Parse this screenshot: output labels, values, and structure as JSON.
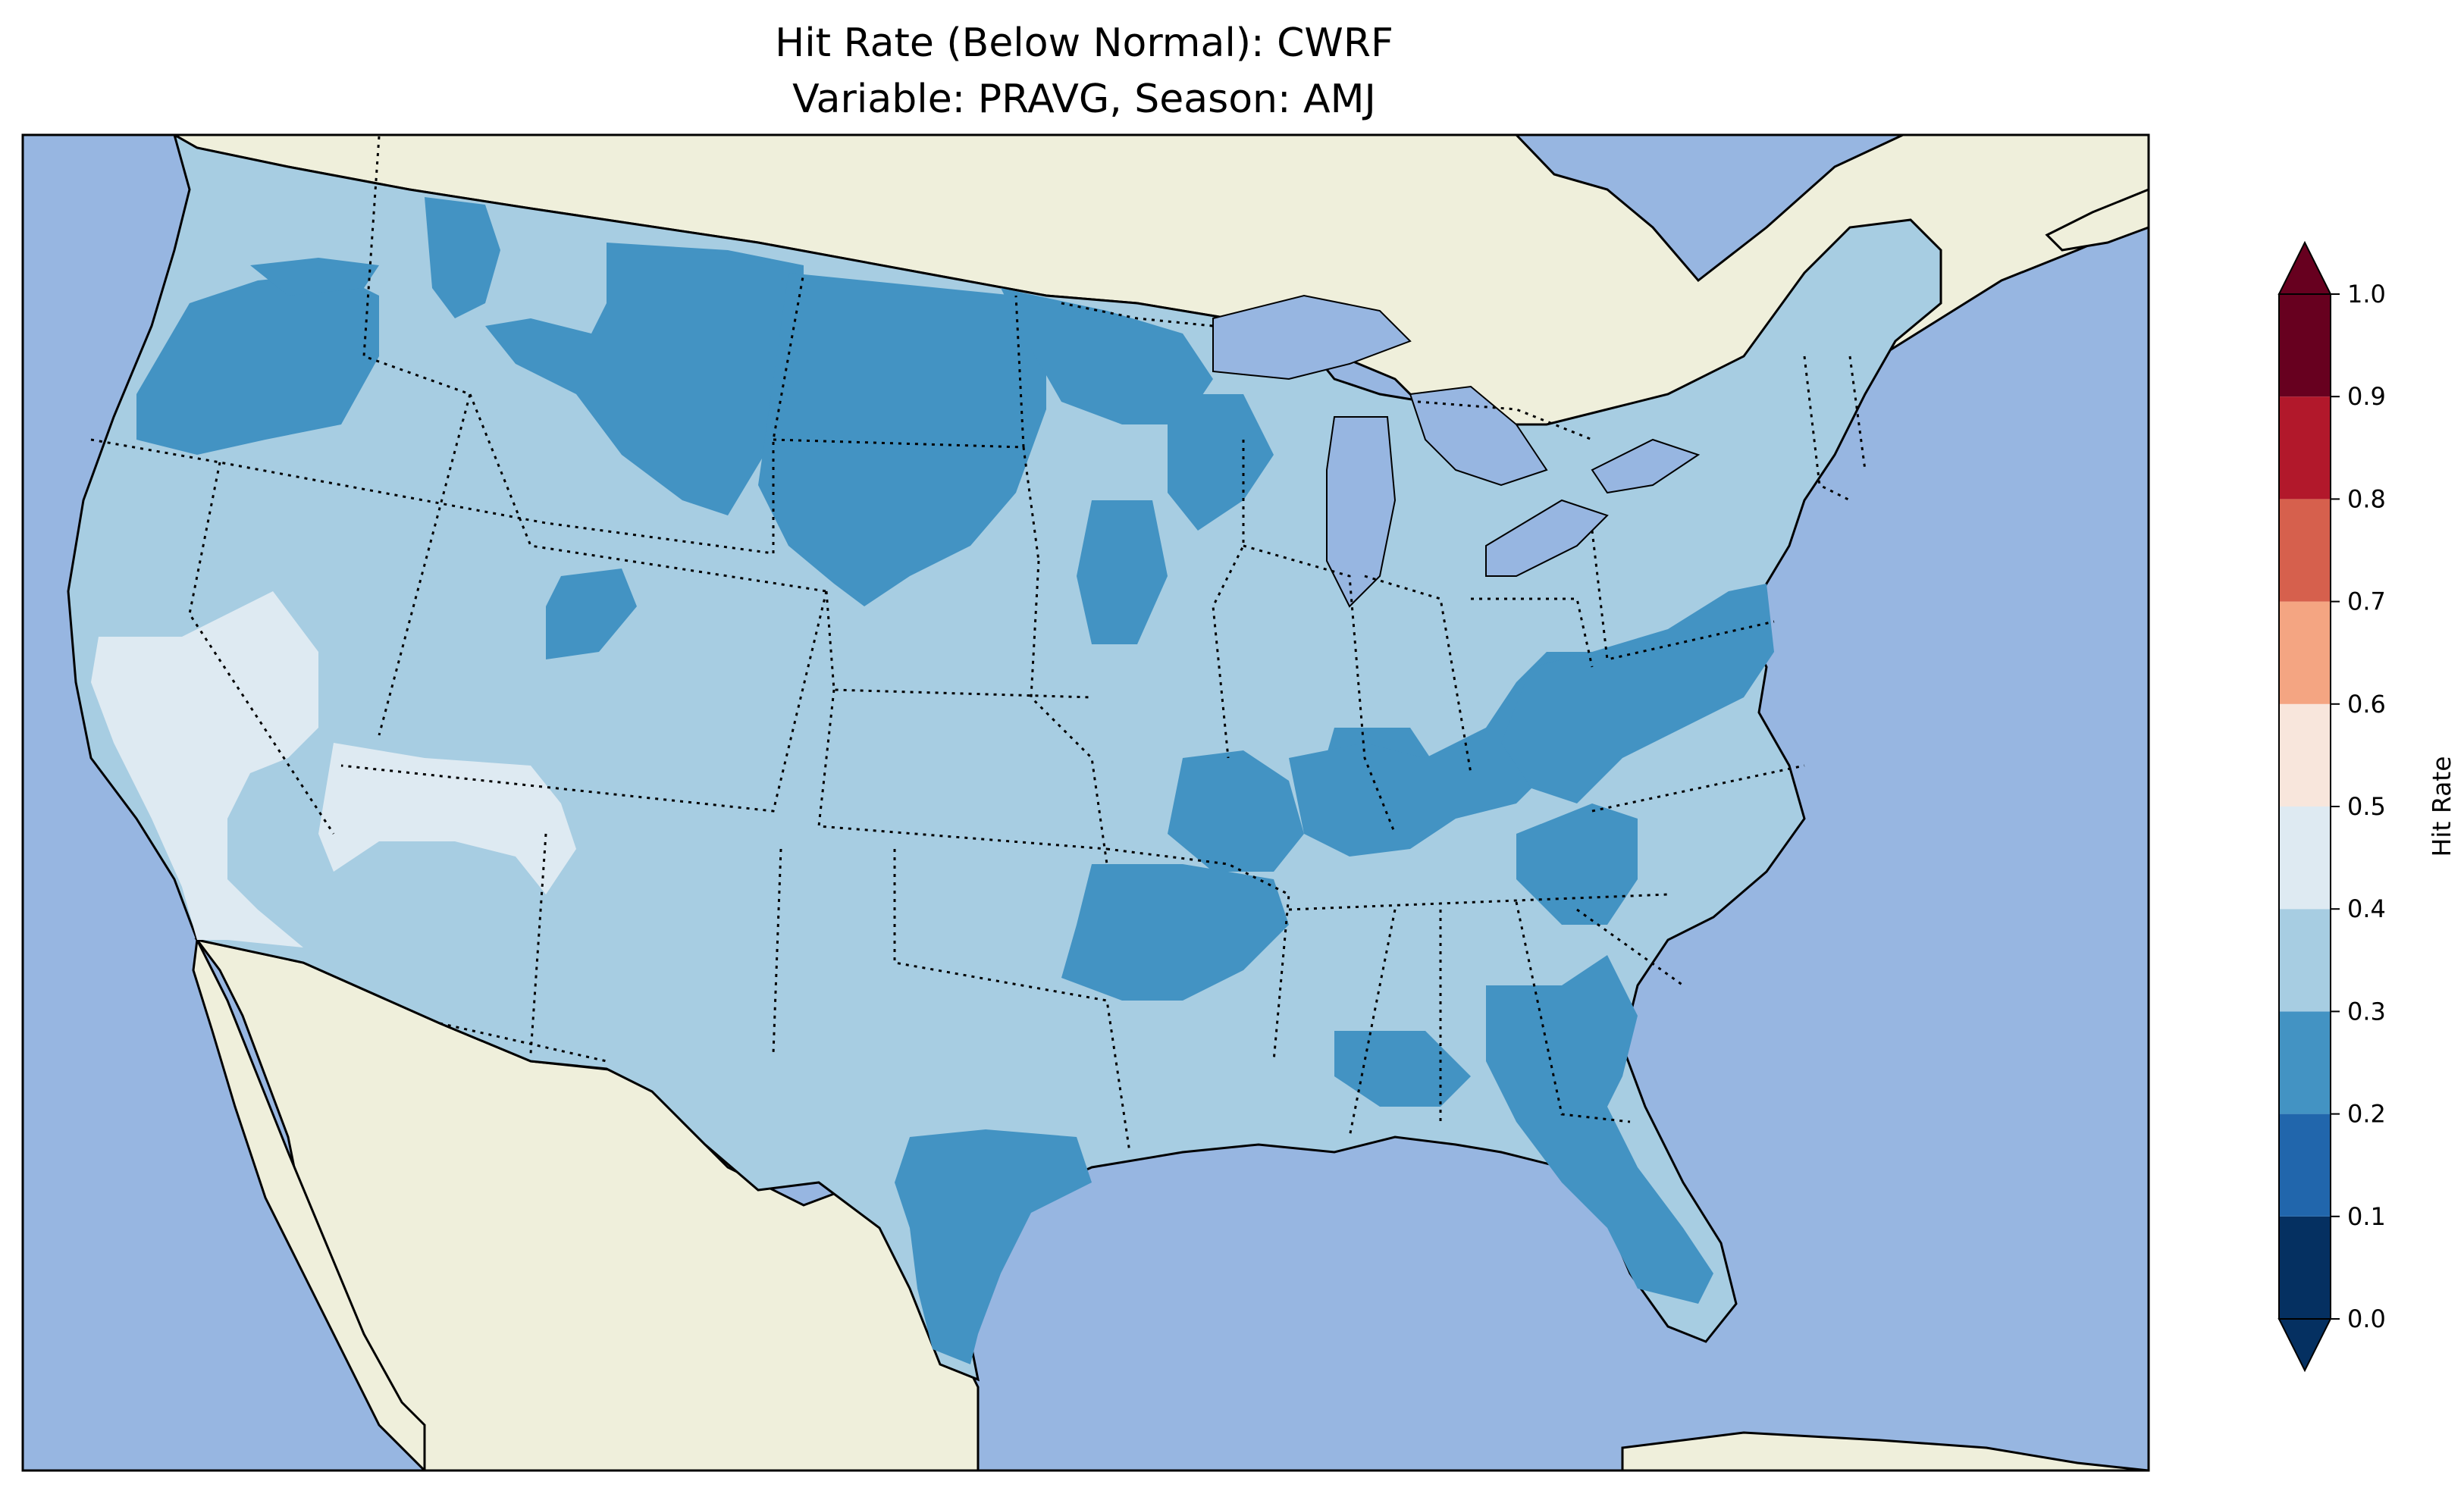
{
  "title": {
    "line1": "Hit Rate (Below Normal): CWRF",
    "line2": "Variable: PRAVG, Season: AMJ"
  },
  "colors": {
    "ocean": "#97b6e1",
    "land": "#efefdb",
    "lake": "#97b6e1",
    "coastline": "#000000",
    "state_border": "#000000"
  },
  "colorbar": {
    "label": "Hit Rate",
    "ticks": [
      "0.0",
      "0.1",
      "0.2",
      "0.3",
      "0.4",
      "0.5",
      "0.6",
      "0.7",
      "0.8",
      "0.9",
      "1.0"
    ],
    "bins": [
      {
        "range": [
          0.0,
          0.1
        ],
        "color": "#053061"
      },
      {
        "range": [
          0.1,
          0.2
        ],
        "color": "#2166ac"
      },
      {
        "range": [
          0.2,
          0.3
        ],
        "color": "#4393c3"
      },
      {
        "range": [
          0.3,
          0.4
        ],
        "color": "#a7cde2"
      },
      {
        "range": [
          0.4,
          0.5
        ],
        "color": "#deeaf2"
      },
      {
        "range": [
          0.5,
          0.6
        ],
        "color": "#f8e6dc"
      },
      {
        "range": [
          0.6,
          0.7
        ],
        "color": "#f4a582"
      },
      {
        "range": [
          0.7,
          0.8
        ],
        "color": "#d6604d"
      },
      {
        "range": [
          0.8,
          0.9
        ],
        "color": "#b2182b"
      },
      {
        "range": [
          0.9,
          1.0
        ],
        "color": "#67001f"
      }
    ],
    "extend": "both",
    "under_color": "#053061",
    "over_color": "#67001f"
  },
  "map_fields": {
    "dominant_class": "0.3-0.4",
    "regions": [
      {
        "name": "Pacific Northwest interior",
        "class": "0.2-0.3"
      },
      {
        "name": "Northern Rockies / Montana",
        "class": "0.2-0.3"
      },
      {
        "name": "North and South Dakota",
        "class": "0.2-0.3"
      },
      {
        "name": "Upper Midwest",
        "class": "0.2-0.3"
      },
      {
        "name": "Ohio Valley / Appalachians",
        "class": "0.2-0.3"
      },
      {
        "name": "Mid-South",
        "class": "0.2-0.3"
      },
      {
        "name": "Georgia / Florida",
        "class": "0.2-0.3"
      },
      {
        "name": "South Texas",
        "class": "0.2-0.3"
      },
      {
        "name": "Nevada / Southwest",
        "class": "0.4-0.5"
      }
    ]
  }
}
